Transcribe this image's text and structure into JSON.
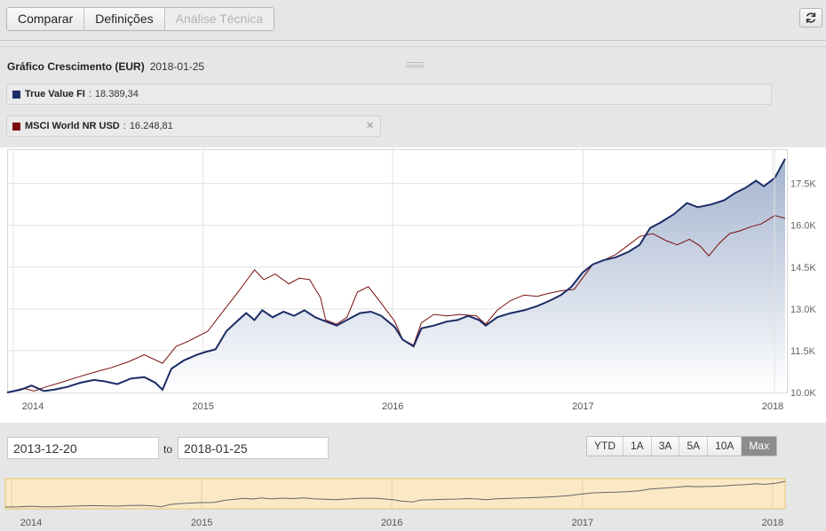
{
  "toolbar": {
    "tabs": [
      {
        "label": "Comparar",
        "enabled": true
      },
      {
        "label": "Definições",
        "enabled": true
      },
      {
        "label": "Análise Técnica",
        "enabled": false
      }
    ],
    "refresh_icon": "refresh-icon"
  },
  "chart_header": {
    "title": "Gráfico Crescimento (EUR)",
    "date": "2018-01-25"
  },
  "legend": [
    {
      "name": "True Value FI",
      "separator": ":",
      "value": "18.389,34",
      "color": "#1c2c66"
    },
    {
      "name": "MSCI World NR USD",
      "separator": ":",
      "value": "16.248,81",
      "color": "#7a0e0e",
      "close_icon": "close-icon",
      "close_label": "×"
    }
  ],
  "date_range": {
    "from": "2013-12-20",
    "to_label": "to",
    "to": "2018-01-25"
  },
  "range_buttons": [
    {
      "label": "YTD",
      "active": false
    },
    {
      "label": "1A",
      "active": false
    },
    {
      "label": "3A",
      "active": false
    },
    {
      "label": "5A",
      "active": false
    },
    {
      "label": "10A",
      "active": false
    },
    {
      "label": "Max",
      "active": true
    }
  ],
  "colors": {
    "series_fund": "#1c2c66",
    "series_index": "#7a0e0e",
    "area_top": "#9fb0cc",
    "navigator_bg": "#fbe9c6",
    "navigator_border": "#e7c870"
  },
  "chart_data": {
    "type": "line",
    "title": "Gráfico Crescimento (EUR)",
    "xlabel": "",
    "ylabel": "",
    "x_range": [
      "2013-12-20",
      "2018-01-25"
    ],
    "x_ticks": [
      "2014",
      "2015",
      "2016",
      "2017",
      "2018"
    ],
    "y_ticks": [
      "10.0K",
      "11.5K",
      "13.0K",
      "14.5K",
      "16.0K",
      "17.5K"
    ],
    "y_tick_values": [
      10000,
      11500,
      13000,
      14500,
      16000,
      17500
    ],
    "ylim": [
      10000,
      18700
    ],
    "grid": true,
    "y_axis_position": "right",
    "area_fill": "True Value FI",
    "navigator_series": "True Value FI",
    "series": [
      {
        "name": "True Value FI",
        "color": "#1c2c66",
        "points": [
          [
            "2013-12-20",
            10000
          ],
          [
            "2014-01-15",
            10100
          ],
          [
            "2014-02-05",
            10250
          ],
          [
            "2014-03-01",
            10050
          ],
          [
            "2014-03-20",
            10100
          ],
          [
            "2014-04-15",
            10200
          ],
          [
            "2014-05-10",
            10350
          ],
          [
            "2014-06-05",
            10450
          ],
          [
            "2014-06-25",
            10400
          ],
          [
            "2014-07-20",
            10300
          ],
          [
            "2014-08-15",
            10500
          ],
          [
            "2014-09-10",
            10550
          ],
          [
            "2014-10-01",
            10350
          ],
          [
            "2014-10-15",
            10100
          ],
          [
            "2014-11-01",
            10850
          ],
          [
            "2014-11-25",
            11150
          ],
          [
            "2014-12-20",
            11350
          ],
          [
            "2015-01-05",
            11450
          ],
          [
            "2015-01-25",
            11550
          ],
          [
            "2015-02-15",
            12200
          ],
          [
            "2015-03-10",
            12600
          ],
          [
            "2015-03-25",
            12850
          ],
          [
            "2015-04-10",
            12600
          ],
          [
            "2015-04-25",
            12950
          ],
          [
            "2015-05-15",
            12700
          ],
          [
            "2015-06-05",
            12900
          ],
          [
            "2015-06-25",
            12750
          ],
          [
            "2015-07-15",
            12950
          ],
          [
            "2015-08-05",
            12700
          ],
          [
            "2015-08-25",
            12550
          ],
          [
            "2015-09-15",
            12400
          ],
          [
            "2015-10-10",
            12650
          ],
          [
            "2015-10-30",
            12850
          ],
          [
            "2015-11-20",
            12900
          ],
          [
            "2015-12-10",
            12750
          ],
          [
            "2016-01-05",
            12350
          ],
          [
            "2016-01-20",
            11900
          ],
          [
            "2016-02-10",
            11650
          ],
          [
            "2016-02-25",
            12300
          ],
          [
            "2016-03-20",
            12400
          ],
          [
            "2016-04-15",
            12550
          ],
          [
            "2016-05-05",
            12600
          ],
          [
            "2016-05-25",
            12750
          ],
          [
            "2016-06-15",
            12600
          ],
          [
            "2016-06-28",
            12400
          ],
          [
            "2016-07-20",
            12700
          ],
          [
            "2016-08-15",
            12850
          ],
          [
            "2016-09-10",
            12950
          ],
          [
            "2016-10-05",
            13100
          ],
          [
            "2016-10-30",
            13300
          ],
          [
            "2016-11-20",
            13500
          ],
          [
            "2016-12-10",
            13800
          ],
          [
            "2016-12-31",
            14300
          ],
          [
            "2017-01-20",
            14600
          ],
          [
            "2017-02-10",
            14750
          ],
          [
            "2017-03-05",
            14850
          ],
          [
            "2017-03-30",
            15050
          ],
          [
            "2017-04-20",
            15300
          ],
          [
            "2017-05-10",
            15900
          ],
          [
            "2017-05-30",
            16100
          ],
          [
            "2017-06-25",
            16400
          ],
          [
            "2017-07-20",
            16800
          ],
          [
            "2017-08-10",
            16650
          ],
          [
            "2017-09-05",
            16750
          ],
          [
            "2017-09-30",
            16900
          ],
          [
            "2017-10-20",
            17150
          ],
          [
            "2017-11-10",
            17350
          ],
          [
            "2017-11-30",
            17600
          ],
          [
            "2017-12-15",
            17400
          ],
          [
            "2018-01-05",
            17700
          ],
          [
            "2018-01-25",
            18389
          ]
        ]
      },
      {
        "name": "MSCI World NR USD",
        "color": "#7a0e0e",
        "points": [
          [
            "2013-12-20",
            10000
          ],
          [
            "2014-01-20",
            10150
          ],
          [
            "2014-02-10",
            10050
          ],
          [
            "2014-03-05",
            10200
          ],
          [
            "2014-04-01",
            10350
          ],
          [
            "2014-05-05",
            10550
          ],
          [
            "2014-06-10",
            10750
          ],
          [
            "2014-07-10",
            10900
          ],
          [
            "2014-08-10",
            11100
          ],
          [
            "2014-09-10",
            11350
          ],
          [
            "2014-10-15",
            11050
          ],
          [
            "2014-11-10",
            11650
          ],
          [
            "2014-12-05",
            11850
          ],
          [
            "2015-01-10",
            12200
          ],
          [
            "2015-02-10",
            12950
          ],
          [
            "2015-03-05",
            13500
          ],
          [
            "2015-03-25",
            14000
          ],
          [
            "2015-04-10",
            14400
          ],
          [
            "2015-04-28",
            14050
          ],
          [
            "2015-05-20",
            14250
          ],
          [
            "2015-06-15",
            13900
          ],
          [
            "2015-07-05",
            14100
          ],
          [
            "2015-07-25",
            14050
          ],
          [
            "2015-08-15",
            13400
          ],
          [
            "2015-08-25",
            12600
          ],
          [
            "2015-09-15",
            12450
          ],
          [
            "2015-10-05",
            12700
          ],
          [
            "2015-10-25",
            13600
          ],
          [
            "2015-11-15",
            13800
          ],
          [
            "2015-12-10",
            13200
          ],
          [
            "2016-01-05",
            12550
          ],
          [
            "2016-01-20",
            11900
          ],
          [
            "2016-02-10",
            11700
          ],
          [
            "2016-02-25",
            12500
          ],
          [
            "2016-03-20",
            12800
          ],
          [
            "2016-04-15",
            12750
          ],
          [
            "2016-05-10",
            12800
          ],
          [
            "2016-06-10",
            12750
          ],
          [
            "2016-06-28",
            12450
          ],
          [
            "2016-07-20",
            12950
          ],
          [
            "2016-08-15",
            13300
          ],
          [
            "2016-09-10",
            13500
          ],
          [
            "2016-10-05",
            13450
          ],
          [
            "2016-10-25",
            13550
          ],
          [
            "2016-11-20",
            13650
          ],
          [
            "2016-12-15",
            13700
          ],
          [
            "2016-12-31",
            14100
          ],
          [
            "2017-01-20",
            14600
          ],
          [
            "2017-02-10",
            14750
          ],
          [
            "2017-03-05",
            14950
          ],
          [
            "2017-03-30",
            15300
          ],
          [
            "2017-04-20",
            15600
          ],
          [
            "2017-05-15",
            15700
          ],
          [
            "2017-06-10",
            15450
          ],
          [
            "2017-07-01",
            15300
          ],
          [
            "2017-07-25",
            15500
          ],
          [
            "2017-08-15",
            15250
          ],
          [
            "2017-08-31",
            14900
          ],
          [
            "2017-09-20",
            15350
          ],
          [
            "2017-10-10",
            15700
          ],
          [
            "2017-10-30",
            15800
          ],
          [
            "2017-11-20",
            15950
          ],
          [
            "2017-12-10",
            16050
          ],
          [
            "2018-01-05",
            16350
          ],
          [
            "2018-01-25",
            16249
          ]
        ]
      }
    ]
  }
}
